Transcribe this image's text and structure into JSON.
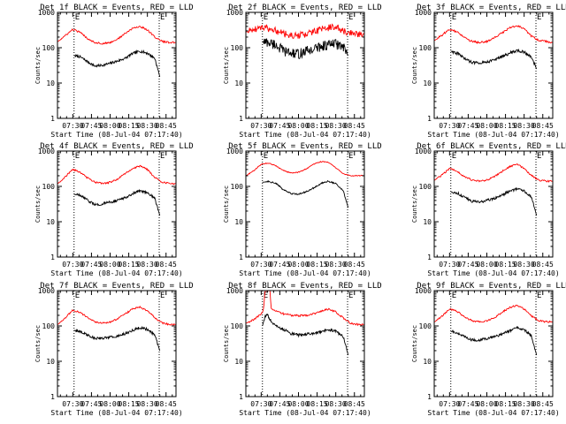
{
  "figure": {
    "x_tick_labels": [
      "07:30",
      "07:45",
      "08:00",
      "08:15",
      "08:30",
      "08:45"
    ],
    "y_tick_labels": [
      "1",
      "10",
      "100",
      "1000"
    ],
    "y_axis_label": "Counts/sec",
    "x_axis_label": "Start Time (08-Jul-04 07:17:40)",
    "boundary_marks": [
      "E",
      "E"
    ],
    "colors": {
      "events": "#000000",
      "lld": "#ff0000",
      "axes": "#000000",
      "background": "#ffffff"
    }
  },
  "chart_data": [
    {
      "type": "line",
      "title": "Det 1f BLACK = Events, RED = LLD",
      "xlim": [
        "07:17:40",
        "08:53:00"
      ],
      "ylim": [
        1,
        1000
      ],
      "yscale": "log",
      "grid": false,
      "markers": [
        "07:31:00",
        "08:39:30"
      ],
      "series": [
        {
          "name": "Events",
          "x": [
            "07:31",
            "07:36",
            "07:42",
            "07:48",
            "07:54",
            "08:00",
            "08:06",
            "08:12",
            "08:18",
            "08:24",
            "08:30",
            "08:36",
            "08:40"
          ],
          "y": [
            60,
            55,
            40,
            30,
            32,
            36,
            42,
            50,
            68,
            80,
            70,
            50,
            15
          ]
        },
        {
          "name": "LLD",
          "x": [
            "07:18",
            "07:24",
            "07:30",
            "07:36",
            "07:42",
            "07:48",
            "07:54",
            "08:00",
            "08:06",
            "08:12",
            "08:18",
            "08:24",
            "08:30",
            "08:36",
            "08:42",
            "08:48",
            "08:53"
          ],
          "y": [
            150,
            220,
            330,
            270,
            180,
            140,
            130,
            140,
            175,
            250,
            350,
            400,
            320,
            200,
            150,
            140,
            140
          ]
        }
      ]
    },
    {
      "type": "line",
      "title": "Det 2f BLACK = Events, RED = LLD",
      "xlim": [
        "07:17:40",
        "08:53:00"
      ],
      "ylim": [
        1,
        1000
      ],
      "yscale": "log",
      "grid": false,
      "markers": [
        "07:31:00",
        "08:39:30"
      ],
      "series": [
        {
          "name": "Events",
          "x": [
            "07:31",
            "07:36",
            "07:42",
            "07:48",
            "07:54",
            "08:00",
            "08:06",
            "08:12",
            "08:18",
            "08:24",
            "08:30",
            "08:36",
            "08:40"
          ],
          "y": [
            150,
            140,
            120,
            80,
            70,
            65,
            80,
            90,
            110,
            120,
            130,
            100,
            60
          ]
        },
        {
          "name": "LLD",
          "x": [
            "07:18",
            "07:24",
            "07:30",
            "07:36",
            "07:42",
            "07:48",
            "07:54",
            "08:00",
            "08:06",
            "08:12",
            "08:18",
            "08:24",
            "08:30",
            "08:36",
            "08:42",
            "08:48",
            "08:53"
          ],
          "y": [
            280,
            330,
            380,
            340,
            300,
            250,
            220,
            220,
            240,
            280,
            330,
            370,
            380,
            300,
            260,
            240,
            250
          ]
        }
      ]
    },
    {
      "type": "line",
      "title": "Det 3f BLACK = Events, RED = LLD",
      "xlim": [
        "07:17:40",
        "08:53:00"
      ],
      "ylim": [
        1,
        1000
      ],
      "yscale": "log",
      "grid": false,
      "markers": [
        "07:31:00",
        "08:39:30"
      ],
      "series": [
        {
          "name": "Events",
          "x": [
            "07:31",
            "07:36",
            "07:42",
            "07:48",
            "07:54",
            "08:00",
            "08:06",
            "08:12",
            "08:18",
            "08:24",
            "08:30",
            "08:36",
            "08:40"
          ],
          "y": [
            80,
            70,
            50,
            38,
            38,
            40,
            45,
            55,
            70,
            82,
            75,
            55,
            25
          ]
        },
        {
          "name": "LLD",
          "x": [
            "07:18",
            "07:24",
            "07:30",
            "07:36",
            "07:42",
            "07:48",
            "07:54",
            "08:00",
            "08:06",
            "08:12",
            "08:18",
            "08:24",
            "08:30",
            "08:36",
            "08:42",
            "08:48",
            "08:53"
          ],
          "y": [
            160,
            230,
            330,
            280,
            190,
            150,
            140,
            150,
            190,
            260,
            360,
            420,
            340,
            210,
            160,
            150,
            140
          ]
        }
      ]
    },
    {
      "type": "line",
      "title": "Det 4f BLACK = Events, RED = LLD",
      "xlim": [
        "07:17:40",
        "08:53:00"
      ],
      "ylim": [
        1,
        1000
      ],
      "yscale": "log",
      "grid": false,
      "markers": [
        "07:31:00",
        "08:39:30"
      ],
      "series": [
        {
          "name": "Events",
          "x": [
            "07:31",
            "07:36",
            "07:42",
            "07:48",
            "07:54",
            "08:00",
            "08:06",
            "08:12",
            "08:18",
            "08:24",
            "08:30",
            "08:36",
            "08:40"
          ],
          "y": [
            60,
            55,
            40,
            30,
            32,
            36,
            40,
            48,
            62,
            75,
            68,
            45,
            15
          ]
        },
        {
          "name": "LLD",
          "x": [
            "07:18",
            "07:24",
            "07:30",
            "07:36",
            "07:42",
            "07:48",
            "07:54",
            "08:00",
            "08:06",
            "08:12",
            "08:18",
            "08:24",
            "08:30",
            "08:36",
            "08:42",
            "08:48",
            "08:53"
          ],
          "y": [
            120,
            190,
            300,
            250,
            170,
            130,
            120,
            130,
            160,
            230,
            320,
            380,
            300,
            180,
            130,
            120,
            120
          ]
        }
      ]
    },
    {
      "type": "line",
      "title": "Det 5f BLACK = Events, RED = LLD",
      "xlim": [
        "07:17:40",
        "08:53:00"
      ],
      "ylim": [
        1,
        1000
      ],
      "yscale": "log",
      "grid": false,
      "markers": [
        "07:31:00",
        "08:39:30"
      ],
      "series": [
        {
          "name": "Events",
          "x": [
            "07:31",
            "07:36",
            "07:42",
            "07:48",
            "07:54",
            "08:00",
            "08:06",
            "08:12",
            "08:18",
            "08:24",
            "08:30",
            "08:36",
            "08:40"
          ],
          "y": [
            130,
            140,
            120,
            80,
            62,
            60,
            70,
            90,
            120,
            140,
            120,
            75,
            25
          ]
        },
        {
          "name": "LLD",
          "x": [
            "07:18",
            "07:24",
            "07:30",
            "07:36",
            "07:42",
            "07:48",
            "07:54",
            "08:00",
            "08:06",
            "08:12",
            "08:18",
            "08:24",
            "08:30",
            "08:36",
            "08:42",
            "08:48",
            "08:53"
          ],
          "y": [
            200,
            280,
            420,
            460,
            380,
            280,
            240,
            250,
            310,
            420,
            500,
            480,
            340,
            230,
            200,
            200,
            200
          ]
        }
      ]
    },
    {
      "type": "line",
      "title": "Det 6f BLACK = Events, RED = LLD",
      "xlim": [
        "07:17:40",
        "08:53:00"
      ],
      "ylim": [
        1,
        1000
      ],
      "yscale": "log",
      "grid": false,
      "markers": [
        "07:31:00",
        "08:39:30"
      ],
      "series": [
        {
          "name": "Events",
          "x": [
            "07:31",
            "07:36",
            "07:42",
            "07:48",
            "07:54",
            "08:00",
            "08:06",
            "08:12",
            "08:18",
            "08:24",
            "08:30",
            "08:36",
            "08:40"
          ],
          "y": [
            70,
            65,
            50,
            38,
            36,
            40,
            46,
            56,
            72,
            85,
            75,
            50,
            15
          ]
        },
        {
          "name": "LLD",
          "x": [
            "07:18",
            "07:24",
            "07:30",
            "07:36",
            "07:42",
            "07:48",
            "07:54",
            "08:00",
            "08:06",
            "08:12",
            "08:18",
            "08:24",
            "08:30",
            "08:36",
            "08:42",
            "08:48",
            "08:53"
          ],
          "y": [
            150,
            210,
            320,
            270,
            190,
            150,
            140,
            150,
            190,
            260,
            360,
            420,
            330,
            200,
            150,
            140,
            140
          ]
        }
      ]
    },
    {
      "type": "line",
      "title": "Det 7f BLACK = Events, RED = LLD",
      "xlim": [
        "07:17:40",
        "08:53:00"
      ],
      "ylim": [
        1,
        1000
      ],
      "yscale": "log",
      "grid": false,
      "markers": [
        "07:31:00",
        "08:39:30"
      ],
      "series": [
        {
          "name": "Events",
          "x": [
            "07:31",
            "07:36",
            "07:42",
            "07:48",
            "07:54",
            "08:00",
            "08:06",
            "08:12",
            "08:18",
            "08:24",
            "08:30",
            "08:36",
            "08:40"
          ],
          "y": [
            75,
            70,
            55,
            45,
            45,
            48,
            52,
            60,
            75,
            90,
            80,
            55,
            20
          ]
        },
        {
          "name": "LLD",
          "x": [
            "07:18",
            "07:24",
            "07:30",
            "07:36",
            "07:42",
            "07:48",
            "07:54",
            "08:00",
            "08:06",
            "08:12",
            "08:18",
            "08:24",
            "08:30",
            "08:36",
            "08:42",
            "08:48",
            "08:53"
          ],
          "y": [
            110,
            170,
            280,
            240,
            170,
            130,
            120,
            130,
            160,
            220,
            300,
            340,
            270,
            170,
            120,
            110,
            110
          ]
        }
      ]
    },
    {
      "type": "line",
      "title": "Det 8f BLACK = Events, RED = LLD",
      "xlim": [
        "07:17:40",
        "08:53:00"
      ],
      "ylim": [
        1,
        1000
      ],
      "yscale": "log",
      "grid": false,
      "markers": [
        "07:31:00",
        "08:39:30"
      ],
      "series": [
        {
          "name": "Events",
          "x": [
            "07:31",
            "07:33",
            "07:35",
            "07:37",
            "07:42",
            "07:48",
            "07:54",
            "08:00",
            "08:06",
            "08:12",
            "08:18",
            "08:24",
            "08:30",
            "08:36",
            "08:40"
          ],
          "y": [
            100,
            180,
            220,
            150,
            100,
            80,
            60,
            55,
            58,
            62,
            70,
            80,
            70,
            50,
            15
          ]
        },
        {
          "name": "LLD",
          "x": [
            "07:18",
            "07:24",
            "07:30",
            "07:32",
            "07:33",
            "07:37",
            "07:38",
            "07:42",
            "07:48",
            "07:54",
            "08:00",
            "08:06",
            "08:12",
            "08:18",
            "08:24",
            "08:30",
            "08:36",
            "08:42",
            "08:48",
            "08:53"
          ],
          "y": [
            120,
            150,
            220,
            300,
            1000,
            1000,
            300,
            270,
            220,
            200,
            195,
            200,
            220,
            260,
            300,
            250,
            170,
            120,
            110,
            110
          ]
        }
      ]
    },
    {
      "type": "line",
      "title": "Det 9f BLACK = Events, RED = LLD",
      "xlim": [
        "07:17:40",
        "08:53:00"
      ],
      "ylim": [
        1,
        1000
      ],
      "yscale": "log",
      "grid": false,
      "markers": [
        "07:31:00",
        "08:39:30"
      ],
      "series": [
        {
          "name": "Events",
          "x": [
            "07:31",
            "07:36",
            "07:42",
            "07:48",
            "07:54",
            "08:00",
            "08:06",
            "08:12",
            "08:18",
            "08:24",
            "08:30",
            "08:36",
            "08:40"
          ],
          "y": [
            70,
            65,
            50,
            40,
            40,
            44,
            50,
            58,
            72,
            88,
            78,
            52,
            15
          ]
        },
        {
          "name": "LLD",
          "x": [
            "07:18",
            "07:24",
            "07:30",
            "07:36",
            "07:42",
            "07:48",
            "07:54",
            "08:00",
            "08:06",
            "08:12",
            "08:18",
            "08:24",
            "08:30",
            "08:36",
            "08:42",
            "08:48",
            "08:53"
          ],
          "y": [
            130,
            190,
            300,
            260,
            180,
            140,
            130,
            140,
            170,
            240,
            330,
            380,
            300,
            190,
            140,
            130,
            130
          ]
        }
      ]
    }
  ]
}
